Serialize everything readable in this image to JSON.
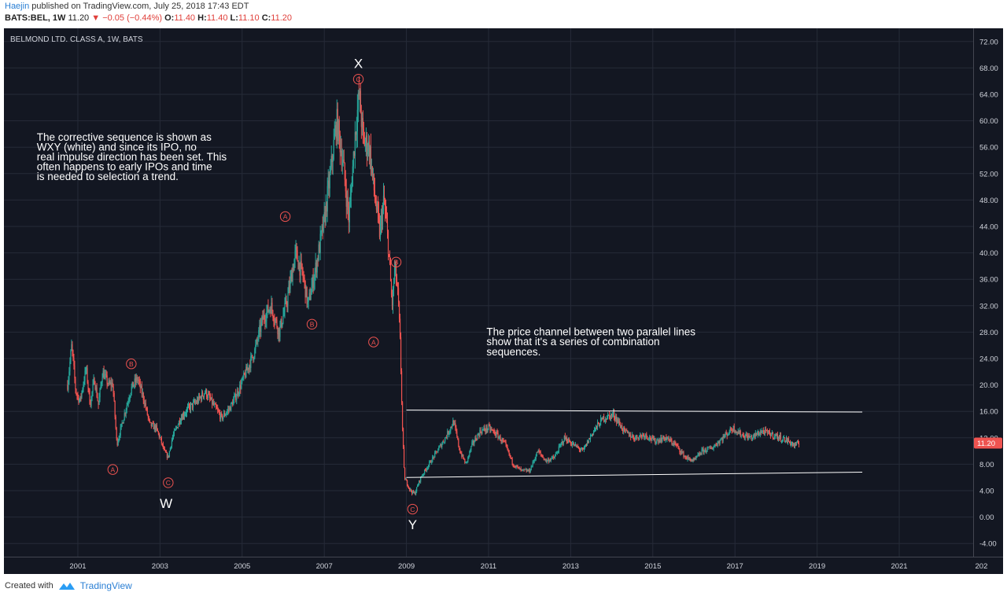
{
  "header": {
    "author": "Haejin",
    "published": "published on TradingView.com, July 25, 2018 17:43 EDT",
    "symbol": "BATS:BEL, 1W",
    "last": "11.20",
    "change": "−0.05 (−0.44%)",
    "o_label": "O:",
    "o": "11.40",
    "h_label": "H:",
    "h": "11.40",
    "l_label": "L:",
    "l": "11.10",
    "c_label": "C:",
    "c": "11.20"
  },
  "footer": {
    "created_with": "Created with",
    "brand": "TradingView"
  },
  "colors": {
    "background": "#131722",
    "up": "#26a69a",
    "down": "#ef5350",
    "grid": "#262b38",
    "text": "#d1d4dc",
    "price_tag": "#ef5350"
  },
  "chart_data": {
    "type": "candlestick",
    "title": "BELMOND LTD. CLASS A, 1W, BATS",
    "ylim": [
      -6,
      74
    ],
    "xlim": [
      1999.2,
      2022.8
    ],
    "y_ticks": [
      "72.00",
      "68.00",
      "64.00",
      "60.00",
      "56.00",
      "52.00",
      "48.00",
      "44.00",
      "40.00",
      "36.00",
      "32.00",
      "28.00",
      "24.00",
      "20.00",
      "16.00",
      "12.00",
      "8.00",
      "4.00",
      "0.00",
      "-4.00"
    ],
    "x_ticks": [
      "2001",
      "2003",
      "2005",
      "2007",
      "2009",
      "2011",
      "2013",
      "2015",
      "2017",
      "2019",
      "2021",
      "202"
    ],
    "last_price": "11.20",
    "price_path": [
      [
        2000.75,
        20
      ],
      [
        2000.85,
        26
      ],
      [
        2000.95,
        19
      ],
      [
        2001.05,
        17.5
      ],
      [
        2001.2,
        22.5
      ],
      [
        2001.3,
        17
      ],
      [
        2001.4,
        21
      ],
      [
        2001.5,
        17
      ],
      [
        2001.6,
        22
      ],
      [
        2001.75,
        20
      ],
      [
        2001.85,
        20.2
      ],
      [
        2001.95,
        11
      ],
      [
        2002.05,
        13.5
      ],
      [
        2002.15,
        16
      ],
      [
        2002.3,
        19.5
      ],
      [
        2002.45,
        21
      ],
      [
        2002.6,
        18
      ],
      [
        2002.75,
        14
      ],
      [
        2002.9,
        13.5
      ],
      [
        2003.0,
        12
      ],
      [
        2003.1,
        10
      ],
      [
        2003.2,
        9
      ],
      [
        2003.3,
        12
      ],
      [
        2003.5,
        15
      ],
      [
        2003.7,
        16.5
      ],
      [
        2003.9,
        17.5
      ],
      [
        2004.1,
        19
      ],
      [
        2004.3,
        17
      ],
      [
        2004.5,
        15
      ],
      [
        2004.7,
        16.5
      ],
      [
        2004.9,
        19
      ],
      [
        2005.1,
        22
      ],
      [
        2005.3,
        25
      ],
      [
        2005.5,
        30
      ],
      [
        2005.7,
        32
      ],
      [
        2005.9,
        28
      ],
      [
        2006.1,
        33
      ],
      [
        2006.3,
        40
      ],
      [
        2006.5,
        36
      ],
      [
        2006.6,
        32
      ],
      [
        2006.8,
        38
      ],
      [
        2007.0,
        45
      ],
      [
        2007.15,
        52
      ],
      [
        2007.3,
        60
      ],
      [
        2007.45,
        54
      ],
      [
        2007.6,
        45
      ],
      [
        2007.75,
        58
      ],
      [
        2007.85,
        64
      ],
      [
        2007.95,
        57
      ],
      [
        2008.1,
        56
      ],
      [
        2008.2,
        50
      ],
      [
        2008.35,
        43
      ],
      [
        2008.45,
        48
      ],
      [
        2008.55,
        42
      ],
      [
        2008.65,
        32
      ],
      [
        2008.72,
        38
      ],
      [
        2008.8,
        33
      ],
      [
        2008.85,
        26
      ],
      [
        2008.9,
        14
      ],
      [
        2008.95,
        6
      ],
      [
        2009.1,
        4
      ],
      [
        2009.2,
        3.5
      ],
      [
        2009.35,
        6
      ],
      [
        2009.55,
        8
      ],
      [
        2009.75,
        10
      ],
      [
        2009.95,
        12
      ],
      [
        2010.15,
        14.5
      ],
      [
        2010.3,
        10
      ],
      [
        2010.45,
        8
      ],
      [
        2010.6,
        11
      ],
      [
        2010.8,
        13
      ],
      [
        2011.0,
        13.5
      ],
      [
        2011.2,
        12.5
      ],
      [
        2011.4,
        11
      ],
      [
        2011.6,
        8
      ],
      [
        2011.8,
        7
      ],
      [
        2012.0,
        7
      ],
      [
        2012.2,
        10
      ],
      [
        2012.4,
        8.5
      ],
      [
        2012.6,
        9
      ],
      [
        2012.85,
        12
      ],
      [
        2013.05,
        11
      ],
      [
        2013.3,
        10
      ],
      [
        2013.55,
        13
      ],
      [
        2013.8,
        15
      ],
      [
        2014.05,
        15.5
      ],
      [
        2014.3,
        13
      ],
      [
        2014.55,
        12
      ],
      [
        2014.8,
        12.5
      ],
      [
        2015.05,
        11.5
      ],
      [
        2015.3,
        12
      ],
      [
        2015.55,
        11
      ],
      [
        2015.8,
        9
      ],
      [
        2016.0,
        8.5
      ],
      [
        2016.2,
        10
      ],
      [
        2016.45,
        10.5
      ],
      [
        2016.7,
        12
      ],
      [
        2016.95,
        13.5
      ],
      [
        2017.15,
        12.5
      ],
      [
        2017.4,
        12
      ],
      [
        2017.65,
        13
      ],
      [
        2017.9,
        12.5
      ],
      [
        2018.1,
        12
      ],
      [
        2018.3,
        11.5
      ],
      [
        2018.45,
        10.8
      ],
      [
        2018.57,
        11.2
      ]
    ],
    "channel_lines": [
      {
        "from": [
          2009.0,
          16.2
        ],
        "to": [
          2020.1,
          15.9
        ]
      },
      {
        "from": [
          2009.0,
          6.0
        ],
        "to": [
          2020.1,
          6.8
        ]
      }
    ],
    "wave_labels": [
      {
        "text": "W",
        "x": 2003.15,
        "y": 2.2,
        "style": "white"
      },
      {
        "text": "X",
        "x": 2007.83,
        "y": 68.8,
        "style": "white"
      },
      {
        "text": "Y",
        "x": 2009.15,
        "y": -1.0,
        "style": "white"
      },
      {
        "text": "A",
        "x": 2001.85,
        "y": 7.2,
        "style": "circle"
      },
      {
        "text": "B",
        "x": 2002.3,
        "y": 23.2,
        "style": "circle"
      },
      {
        "text": "C",
        "x": 2003.2,
        "y": 5.2,
        "style": "circle"
      },
      {
        "text": "A",
        "x": 2006.05,
        "y": 45.5,
        "style": "circle"
      },
      {
        "text": "B",
        "x": 2006.7,
        "y": 29.2,
        "style": "circle"
      },
      {
        "text": "C",
        "x": 2007.83,
        "y": 66.3,
        "style": "circle"
      },
      {
        "text": "A",
        "x": 2008.2,
        "y": 26.5,
        "style": "circle"
      },
      {
        "text": "B",
        "x": 2008.75,
        "y": 38.6,
        "style": "circle"
      },
      {
        "text": "C",
        "x": 2009.15,
        "y": 1.2,
        "style": "circle"
      }
    ],
    "annotations": [
      {
        "lines": [
          "The corrective sequence is shown as",
          "WXY (white) and since its IPO, no",
          "real impulse direction has been set. This",
          "often happens to early IPOs and time",
          "is needed to selection a trend."
        ],
        "x": 2000.0,
        "y": 57.0
      },
      {
        "lines": [
          "The price channel between two parallel lines",
          "show that it's a series of combination",
          "sequences."
        ],
        "x": 2010.95,
        "y": 27.5
      }
    ]
  }
}
